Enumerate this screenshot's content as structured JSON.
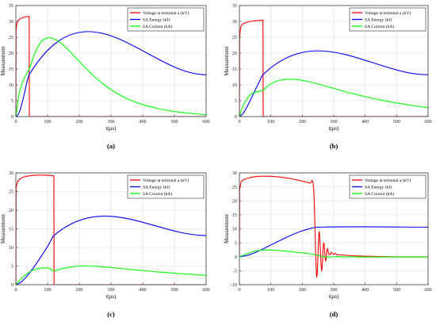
{
  "chart_data": [
    {
      "panel_label": "(a)",
      "type": "line",
      "xlabel": "t(μs)",
      "ylabel": "Measurement",
      "xlim": [
        0,
        600
      ],
      "ylim": [
        0,
        35
      ],
      "xticks": [
        "0",
        "100",
        "200",
        "300",
        "400",
        "500",
        "600"
      ],
      "yticks": [
        "0",
        "5",
        "10",
        "15",
        "20",
        "25",
        "30",
        "35"
      ],
      "grid": true,
      "legend_position": "top-right",
      "series": [
        {
          "name": "Voltage at terminal a (kV)",
          "color": "#ff0000",
          "x": [
            0,
            0.5,
            3,
            8,
            15,
            25,
            35,
            42,
            42.5,
            600
          ],
          "y": [
            0,
            27.0,
            29.2,
            30.3,
            30.9,
            31.3,
            31.5,
            31.6,
            0,
            0
          ]
        },
        {
          "name": "SA Energy (kJ)",
          "color": "#0000ff",
          "x": [
            0,
            5,
            10,
            15,
            20,
            25,
            30,
            35,
            42,
            600
          ],
          "y": [
            0,
            0.3,
            1.2,
            2.6,
            4.4,
            6.5,
            8.7,
            10.9,
            13.2,
            13.2
          ]
        },
        {
          "name": "SA Current (kA)",
          "color": "#00ff00",
          "x": [
            0,
            10,
            20,
            30,
            42,
            60,
            80,
            100,
            120,
            140,
            160,
            200,
            250,
            300,
            350,
            400,
            450,
            500,
            550,
            600
          ],
          "y": [
            0,
            7.0,
            10.5,
            12.8,
            15.0,
            20.0,
            23.6,
            24.8,
            24.5,
            23.3,
            21.6,
            17.4,
            12.4,
            8.5,
            5.7,
            3.8,
            2.5,
            1.6,
            1.0,
            0.6
          ]
        }
      ]
    },
    {
      "panel_label": "(b)",
      "type": "line",
      "xlabel": "t(μs)",
      "ylabel": "Measurement",
      "xlim": [
        0,
        600
      ],
      "ylim": [
        0,
        35
      ],
      "xticks": [
        "0",
        "100",
        "200",
        "300",
        "400",
        "500",
        "600"
      ],
      "yticks": [
        "0",
        "5",
        "10",
        "15",
        "20",
        "25",
        "30",
        "35"
      ],
      "grid": true,
      "legend_position": "top-right",
      "series": [
        {
          "name": "Voltage at terminal a (kV)",
          "color": "#ff0000",
          "x": [
            0,
            0.5,
            4,
            10,
            20,
            35,
            50,
            65,
            75,
            75.5,
            600
          ],
          "y": [
            0,
            25.0,
            28.0,
            29.1,
            29.6,
            30.0,
            30.2,
            30.3,
            30.4,
            0,
            0
          ]
        },
        {
          "name": "SA Energy (kJ)",
          "color": "#0000ff",
          "x": [
            0,
            10,
            20,
            30,
            40,
            50,
            60,
            75,
            600
          ],
          "y": [
            0,
            0.8,
            2.3,
            4.2,
            6.2,
            8.3,
            10.3,
            13.2,
            13.2
          ]
        },
        {
          "name": "SA Current (kA)",
          "color": "#00ff00",
          "x": [
            0,
            10,
            20,
            30,
            40,
            55,
            75,
            90,
            110,
            130,
            160,
            190,
            220,
            260,
            300,
            350,
            400,
            450,
            500,
            550,
            600
          ],
          "y": [
            0,
            3.0,
            5.0,
            6.4,
            7.3,
            7.8,
            8.3,
            9.6,
            10.8,
            11.5,
            11.8,
            11.6,
            11.0,
            10.0,
            8.9,
            7.5,
            6.3,
            5.2,
            4.3,
            3.5,
            2.8
          ]
        }
      ]
    },
    {
      "panel_label": "(c)",
      "type": "line",
      "xlabel": "t(μs)",
      "ylabel": "Measurement",
      "xlim": [
        0,
        600
      ],
      "ylim": [
        0,
        30
      ],
      "xticks": [
        "0",
        "100",
        "200",
        "300",
        "400",
        "500",
        "600"
      ],
      "yticks": [
        "0",
        "5",
        "10",
        "15",
        "20",
        "25",
        "30"
      ],
      "grid": true,
      "legend_position": "top-right",
      "series": [
        {
          "name": "Voltage at terminal a (kV)",
          "color": "#ff0000",
          "x": [
            0,
            0.5,
            5,
            15,
            30,
            50,
            70,
            90,
            110,
            120,
            120.5,
            600
          ],
          "y": [
            0,
            26.0,
            27.5,
            28.5,
            29.0,
            29.3,
            29.4,
            29.4,
            29.3,
            29.2,
            0,
            0
          ]
        },
        {
          "name": "SA Energy (kJ)",
          "color": "#0000ff",
          "x": [
            0,
            15,
            30,
            45,
            60,
            75,
            90,
            105,
            120,
            600
          ],
          "y": [
            0,
            0.6,
            1.8,
            3.4,
            5.1,
            7.0,
            8.9,
            11.0,
            13.2,
            13.2
          ]
        },
        {
          "name": "SA Current (kA)",
          "color": "#00ff00",
          "x": [
            0,
            15,
            30,
            45,
            60,
            75,
            90,
            105,
            120,
            140,
            170,
            200,
            230,
            260,
            300,
            350,
            400,
            450,
            500,
            550,
            600
          ],
          "y": [
            0,
            1.4,
            2.6,
            3.5,
            4.1,
            4.4,
            4.5,
            4.4,
            3.7,
            4.2,
            4.7,
            5.0,
            5.0,
            4.9,
            4.6,
            4.2,
            3.8,
            3.4,
            3.1,
            2.8,
            2.5
          ]
        }
      ]
    },
    {
      "panel_label": "(d)",
      "type": "line",
      "xlabel": "t(μs)",
      "ylabel": "Measurement",
      "xlim": [
        0,
        600
      ],
      "ylim": [
        -10,
        30
      ],
      "xticks": [
        "0",
        "100",
        "200",
        "300",
        "400",
        "500",
        "600"
      ],
      "yticks": [
        "-10",
        "-5",
        "0",
        "5",
        "10",
        "15",
        "20",
        "25",
        "30"
      ],
      "grid": true,
      "legend_position": "top-right",
      "series": [
        {
          "name": "Voltage at terminal a (kV)",
          "color": "#ff0000",
          "x": [
            0,
            0.5,
            5,
            15,
            30,
            50,
            70,
            90,
            110,
            130,
            150,
            170,
            190,
            210,
            225,
            235,
            238,
            240,
            242,
            244,
            246,
            248,
            250,
            252,
            254,
            256,
            258,
            260,
            262,
            264,
            266,
            268,
            270,
            272,
            274,
            276,
            278,
            280,
            284,
            288,
            292,
            296,
            300,
            305,
            310,
            320,
            340,
            370,
            400,
            450,
            500,
            600
          ],
          "y": [
            0,
            24.0,
            26.5,
            27.6,
            28.2,
            28.6,
            28.8,
            28.8,
            28.7,
            28.5,
            28.2,
            27.8,
            27.3,
            26.8,
            26.3,
            25.7,
            20.0,
            12.0,
            3.0,
            -4.0,
            -7.2,
            -5.0,
            1.0,
            7.0,
            9.0,
            6.0,
            1.0,
            -3.0,
            -5.0,
            -2.0,
            2.5,
            5.0,
            3.5,
            0.5,
            -1.5,
            -0.5,
            2.0,
            3.0,
            1.0,
            0.8,
            1.6,
            1.1,
            0.9,
            1.2,
            0.8,
            0.7,
            0.5,
            0.3,
            0.2,
            0.05,
            0,
            0
          ]
        },
        {
          "name": "SA Energy (kJ)",
          "color": "#0000ff",
          "x": [
            0,
            25,
            50,
            75,
            100,
            125,
            150,
            175,
            200,
            225,
            240,
            260,
            600
          ],
          "y": [
            0,
            0.5,
            1.5,
            2.8,
            4.2,
            5.6,
            7.0,
            8.2,
            9.3,
            10.1,
            10.5,
            10.6,
            10.6
          ]
        },
        {
          "name": "SA Current (kA)",
          "color": "#00ff00",
          "x": [
            0,
            20,
            40,
            60,
            80,
            100,
            120,
            140,
            160,
            180,
            200,
            220,
            240,
            260,
            280,
            300,
            350,
            400,
            450,
            500,
            550,
            600
          ],
          "y": [
            0,
            0.9,
            1.7,
            2.2,
            2.4,
            2.4,
            2.3,
            2.1,
            1.9,
            1.6,
            1.4,
            1.1,
            0.8,
            0.2,
            -0.1,
            0.0,
            -0.05,
            -0.08,
            -0.1,
            -0.1,
            -0.1,
            -0.1
          ]
        }
      ]
    }
  ]
}
